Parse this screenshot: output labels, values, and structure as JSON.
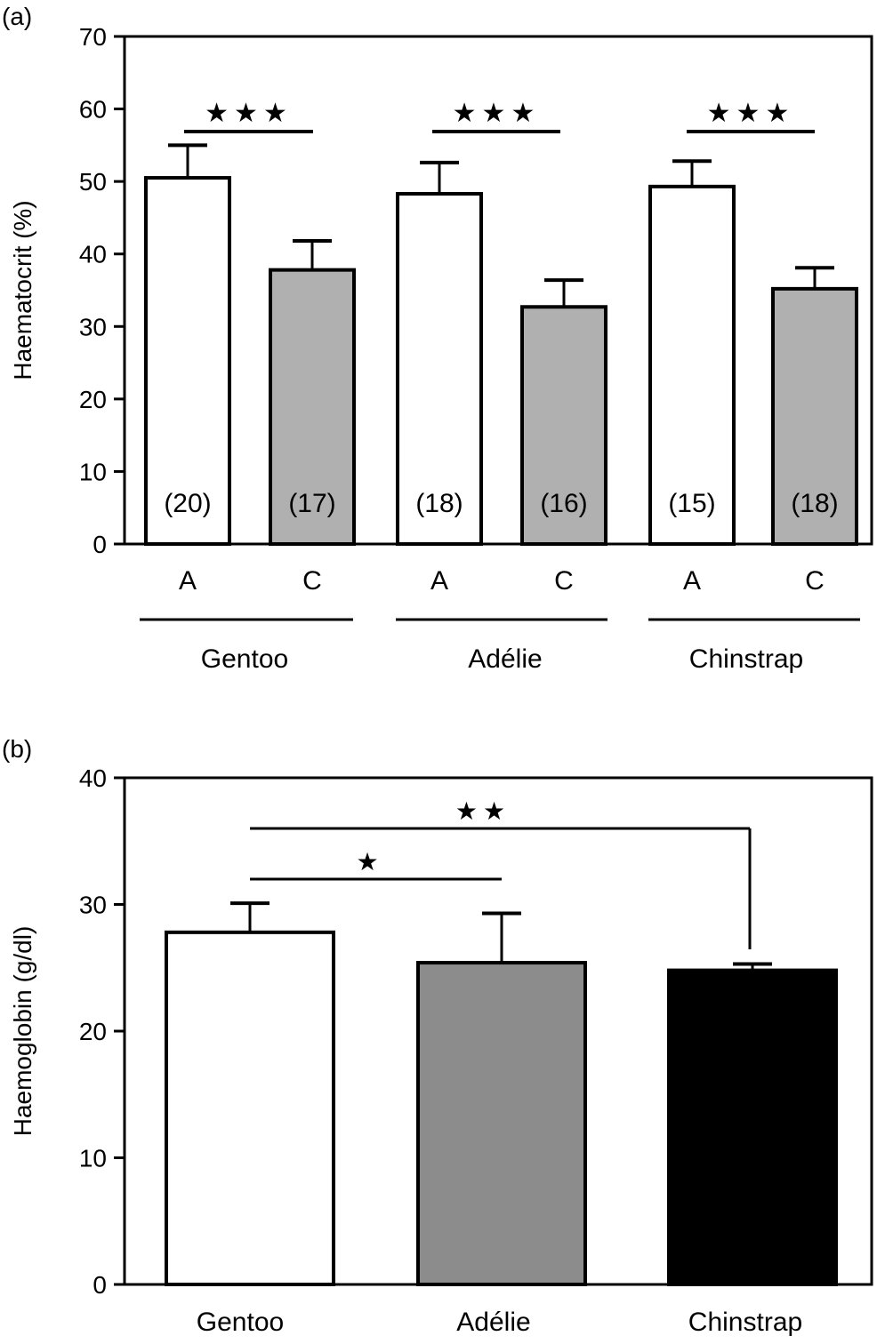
{
  "chart_data": [
    {
      "type": "bar",
      "panel_label": "(a)",
      "title": "",
      "ylabel": "Haematocrit (%)",
      "ylim": [
        0,
        70
      ],
      "yticks": [
        "0",
        "10",
        "20",
        "30",
        "40",
        "50",
        "60",
        "70"
      ],
      "categories": [
        "A",
        "C",
        "A",
        "C",
        "A",
        "C"
      ],
      "groups": [
        "Gentoo",
        "Adélie",
        "Chinstrap"
      ],
      "values": [
        50.5,
        37.8,
        48.3,
        32.7,
        49.3,
        35.2
      ],
      "error_upper": [
        55.0,
        41.8,
        52.6,
        36.4,
        52.8,
        38.1
      ],
      "n_labels": [
        "(20)",
        "(17)",
        "(18)",
        "(16)",
        "(15)",
        "(18)"
      ],
      "fill_colors": [
        "#ffffff",
        "#b0b0b0",
        "#ffffff",
        "#b0b0b0",
        "#ffffff",
        "#b0b0b0"
      ],
      "significance": [
        {
          "from": 0,
          "to": 1,
          "label": "★★★"
        },
        {
          "from": 2,
          "to": 3,
          "label": "★★★"
        },
        {
          "from": 4,
          "to": 5,
          "label": "★★★"
        }
      ]
    },
    {
      "type": "bar",
      "panel_label": "(b)",
      "title": "",
      "ylabel": "Haemoglobin (g/dl)",
      "ylim": [
        0,
        40
      ],
      "yticks": [
        "0",
        "10",
        "20",
        "30",
        "40"
      ],
      "categories": [
        "Gentoo",
        "Adélie",
        "Chinstrap"
      ],
      "values": [
        27.8,
        25.4,
        24.8
      ],
      "error_upper": [
        30.1,
        29.3,
        25.3
      ],
      "fill_colors": [
        "#ffffff",
        "#8c8c8c",
        "#000000"
      ],
      "significance": [
        {
          "from": 0,
          "to": 1,
          "label": "★",
          "y": 32
        },
        {
          "from": 0,
          "to": 2,
          "label": "★★",
          "y": 36
        }
      ]
    }
  ]
}
